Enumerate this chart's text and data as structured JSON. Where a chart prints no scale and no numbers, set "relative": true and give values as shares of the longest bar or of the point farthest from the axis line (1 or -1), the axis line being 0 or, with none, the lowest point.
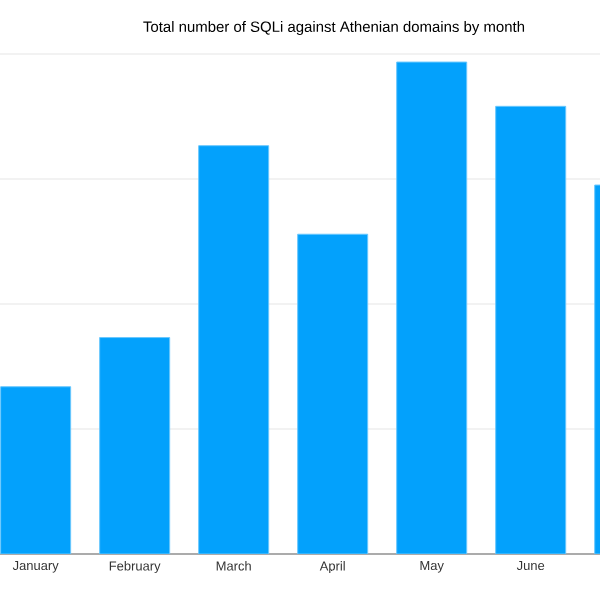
{
  "chart_data": {
    "type": "bar",
    "title": "Total number of SQLi against Athenian domains by month",
    "categories": [
      "January",
      "February",
      "March",
      "April",
      "May",
      "June",
      null
    ],
    "values": [
      0.34,
      0.44,
      0.83,
      0.65,
      1,
      0.91,
      0.75
    ],
    "color": "#03a1fc",
    "relative": true,
    "grid": "y"
  }
}
